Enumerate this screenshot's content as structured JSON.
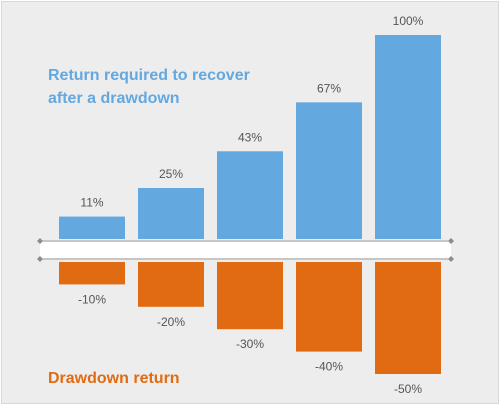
{
  "chart_data": {
    "type": "bar",
    "categories": [
      "",
      "",
      "",
      "",
      ""
    ],
    "series": [
      {
        "name": "Return required to recover after a drawdown",
        "values": [
          11,
          25,
          43,
          67,
          100
        ],
        "labels": [
          "11%",
          "25%",
          "43%",
          "67%",
          "100%"
        ],
        "color": "#64a8e0"
      },
      {
        "name": "Drawdown return",
        "values": [
          -10,
          -20,
          -30,
          -40,
          -50
        ],
        "labels": [
          "-10%",
          "-20%",
          "-30%",
          "-40%",
          "-50%"
        ],
        "color": "#e16b12"
      }
    ],
    "title_lines": [
      "Return required to recover",
      "after a drawdown"
    ],
    "bottom_label": "Drawdown return",
    "ylim": [
      -50,
      100
    ],
    "grid": false,
    "colors": {
      "background": "#ededed",
      "axis": "#ffffff",
      "axis_marker": "#8c8c8c",
      "label_text": "#555555"
    }
  }
}
